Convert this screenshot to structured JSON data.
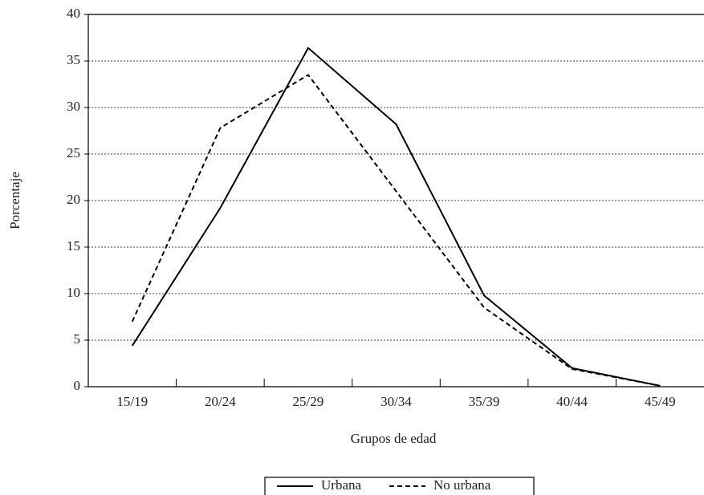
{
  "chart_data": {
    "type": "line",
    "x_label": "Grupos de edad",
    "y_label": "Porcentaje",
    "categories": [
      "15/19",
      "20/24",
      "25/29",
      "30/34",
      "35/39",
      "40/44",
      "45/49"
    ],
    "series": [
      {
        "name": "Urbana",
        "color": "#000000",
        "style": "solid",
        "values": [
          4.4,
          19.2,
          36.4,
          28.2,
          9.8,
          2.0,
          0.1
        ]
      },
      {
        "name": "No urbana",
        "color": "#000000",
        "style": "dashed",
        "values": [
          7.0,
          27.8,
          33.5,
          21.0,
          8.5,
          1.9,
          0.1
        ]
      }
    ],
    "ylim": [
      0,
      40
    ],
    "yticks": [
      0,
      5,
      10,
      15,
      20,
      25,
      30,
      35,
      40
    ],
    "grid": true,
    "legend": "bottom"
  }
}
